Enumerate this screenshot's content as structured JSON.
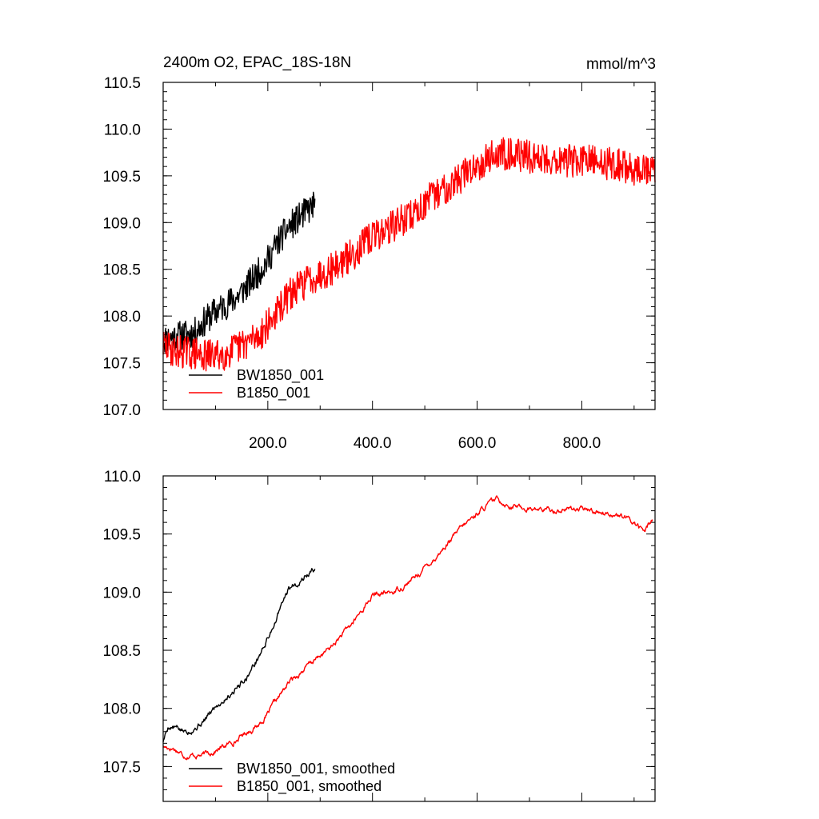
{
  "chart_data": [
    {
      "type": "line",
      "title": "2400m O2, EPAC_18S-18N",
      "units": "mmol/m^3",
      "xlim": [
        0,
        940
      ],
      "ylim": [
        107.0,
        110.5
      ],
      "yticks": [
        107.0,
        107.5,
        108.0,
        108.5,
        109.0,
        109.5,
        110.0,
        110.5
      ],
      "ytick_labels": [
        "107.0",
        "107.5",
        "108.0",
        "108.5",
        "109.0",
        "109.5",
        "110.0",
        "110.5"
      ],
      "xticks": [
        200,
        400,
        600,
        800
      ],
      "xtick_labels": [
        "200.0",
        "400.0",
        "600.0",
        "800.0"
      ],
      "legend_position": "bottom-left",
      "series": [
        {
          "name": "BW1850_001",
          "color": "#000000",
          "noise": 0.18,
          "seed": 11,
          "x": [
            0,
            20,
            40,
            60,
            80,
            100,
            120,
            140,
            160,
            180,
            200,
            220,
            240,
            260,
            280,
            290
          ],
          "values": [
            107.75,
            107.78,
            107.8,
            107.82,
            107.95,
            108.05,
            108.12,
            108.2,
            108.32,
            108.45,
            108.6,
            108.8,
            108.95,
            109.05,
            109.15,
            109.2
          ]
        },
        {
          "name": "B1850_001",
          "color": "#ff0000",
          "noise": 0.2,
          "seed": 29,
          "x": [
            0,
            20,
            40,
            60,
            80,
            100,
            120,
            140,
            160,
            180,
            200,
            240,
            280,
            320,
            360,
            400,
            440,
            480,
            520,
            560,
            600,
            630,
            660,
            700,
            740,
            780,
            820,
            860,
            900,
            940
          ],
          "values": [
            107.68,
            107.63,
            107.62,
            107.6,
            107.57,
            107.58,
            107.6,
            107.65,
            107.72,
            107.78,
            107.9,
            108.22,
            108.4,
            108.5,
            108.65,
            108.85,
            108.97,
            109.1,
            109.3,
            109.45,
            109.62,
            109.72,
            109.75,
            109.7,
            109.68,
            109.66,
            109.65,
            109.63,
            109.57,
            109.55
          ]
        }
      ]
    },
    {
      "type": "line",
      "title": "",
      "xlim": [
        0,
        940
      ],
      "ylim": [
        107.2,
        110.0
      ],
      "yticks": [
        107.5,
        108.0,
        108.5,
        109.0,
        109.5,
        110.0
      ],
      "ytick_labels": [
        "107.5",
        "108.0",
        "108.5",
        "109.0",
        "109.5",
        "110.0"
      ],
      "xticks": [
        200,
        400,
        600,
        800
      ],
      "legend_position": "bottom-left",
      "series": [
        {
          "name": "BW1850_001, smoothed",
          "color": "#000000",
          "noise": 0.035,
          "seed": 5,
          "x": [
            0,
            10,
            20,
            40,
            60,
            80,
            100,
            120,
            140,
            160,
            180,
            200,
            220,
            240,
            260,
            280,
            290
          ],
          "values": [
            107.72,
            107.85,
            107.84,
            107.8,
            107.84,
            107.9,
            108.02,
            108.1,
            108.18,
            108.28,
            108.42,
            108.6,
            108.82,
            109.02,
            109.1,
            109.17,
            109.2
          ]
        },
        {
          "name": "B1850_001, smoothed",
          "color": "#ff0000",
          "noise": 0.03,
          "seed": 17,
          "x": [
            0,
            20,
            40,
            60,
            80,
            100,
            120,
            140,
            160,
            180,
            200,
            240,
            280,
            320,
            360,
            400,
            440,
            480,
            520,
            560,
            600,
            620,
            640,
            660,
            700,
            740,
            780,
            820,
            860,
            900,
            920,
            935
          ],
          "values": [
            107.67,
            107.66,
            107.6,
            107.6,
            107.6,
            107.64,
            107.68,
            107.73,
            107.8,
            107.85,
            107.95,
            108.22,
            108.38,
            108.52,
            108.72,
            108.97,
            109.0,
            109.12,
            109.3,
            109.5,
            109.68,
            109.75,
            109.8,
            109.75,
            109.72,
            109.7,
            109.72,
            109.7,
            109.68,
            109.6,
            109.52,
            109.63
          ]
        }
      ]
    }
  ]
}
